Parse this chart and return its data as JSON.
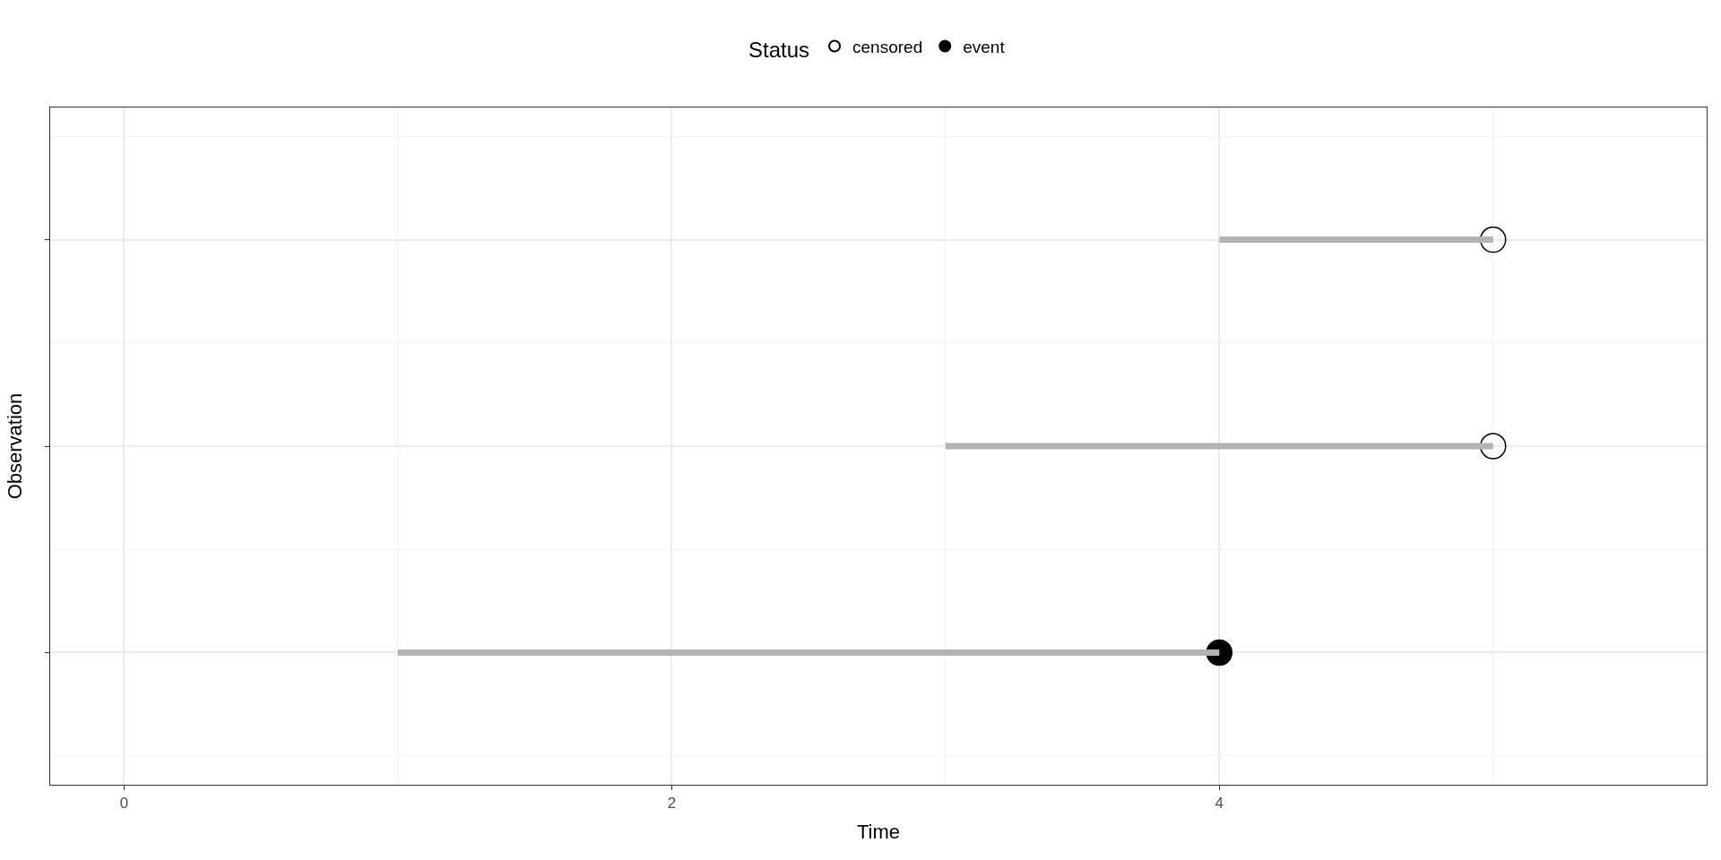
{
  "chart_data": {
    "type": "bar",
    "orientation": "horizontal",
    "xlabel": "Time",
    "ylabel": "Observation",
    "legend_title": "Status",
    "legend": "top",
    "categories": [
      null,
      null,
      null
    ],
    "series": [
      {
        "color": "#b3b3b3",
        "base": [
          4,
          3,
          1
        ],
        "values": [
          1,
          2,
          3
        ]
      },
      {
        "type": "scatter",
        "name": "censored",
        "color": "#000000",
        "values": [
          5,
          5,
          null
        ],
        "marker": "circle-open"
      },
      {
        "type": "scatter",
        "name": "event",
        "color": "#000000",
        "values": [
          null,
          null,
          4
        ],
        "marker": "circle"
      }
    ],
    "xlim": [
      -0.27,
      5.78
    ],
    "xticks": [
      0,
      2,
      4
    ],
    "grid": true
  }
}
